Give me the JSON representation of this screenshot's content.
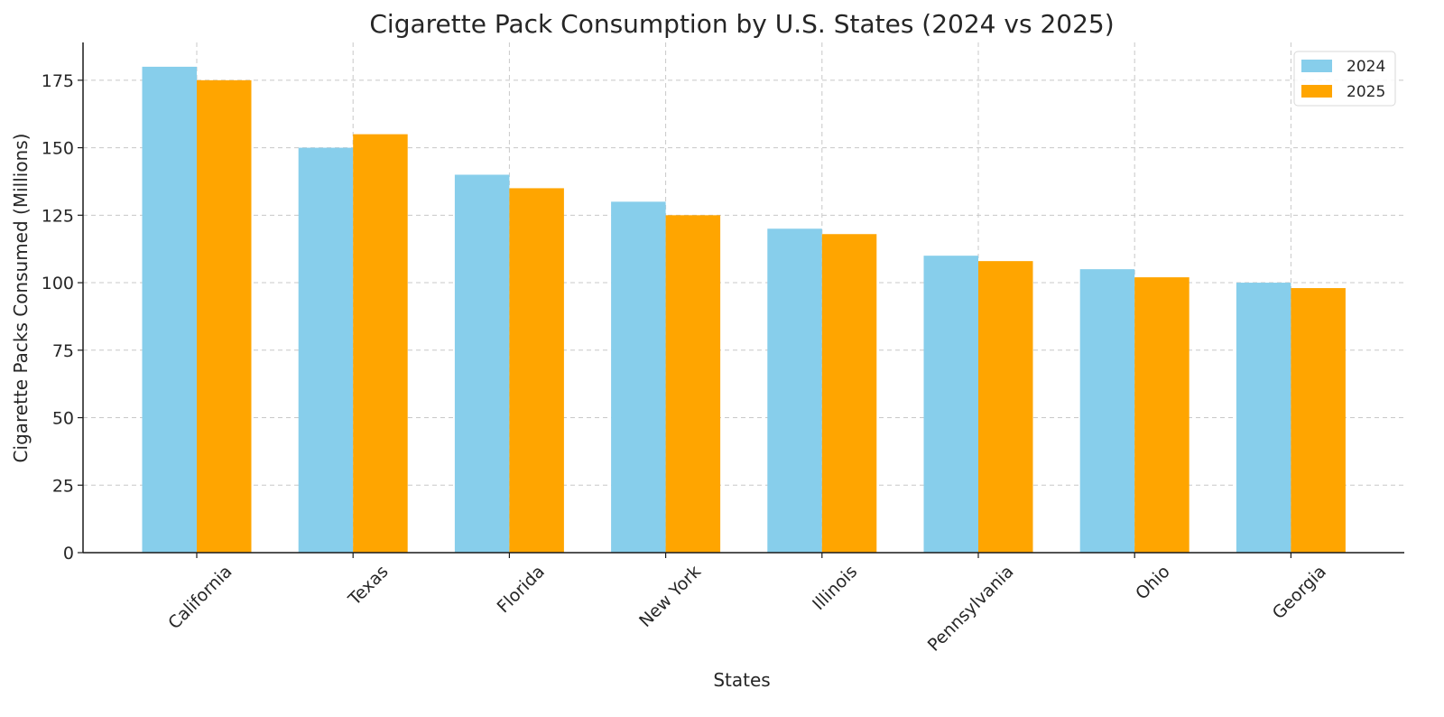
{
  "chart_data": {
    "type": "bar",
    "title": "Cigarette Pack Consumption by U.S. States (2024 vs 2025)",
    "xlabel": "States",
    "ylabel": "Cigarette Packs Consumed (Millions)",
    "categories": [
      "California",
      "Texas",
      "Florida",
      "New York",
      "Illinois",
      "Pennsylvania",
      "Ohio",
      "Georgia"
    ],
    "series": [
      {
        "name": "2024",
        "color": "#87CEEB",
        "values": [
          180,
          150,
          140,
          130,
          120,
          110,
          105,
          100
        ]
      },
      {
        "name": "2025",
        "color": "#FFA500",
        "values": [
          175,
          155,
          135,
          125,
          118,
          108,
          102,
          98
        ]
      }
    ],
    "ylim": [
      0,
      189
    ],
    "yticks": [
      0,
      25,
      50,
      75,
      100,
      125,
      150,
      175
    ],
    "grid": true,
    "legend_position": "top-right"
  }
}
